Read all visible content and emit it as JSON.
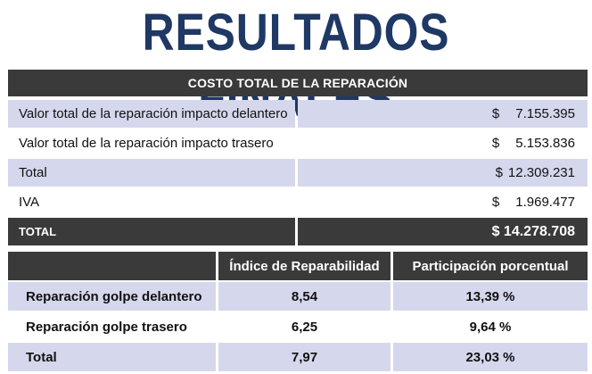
{
  "title": "RESULTADOS FINALES",
  "cost_table": {
    "header": "COSTO TOTAL DE LA REPARACIÓN",
    "currency": "$",
    "rows": [
      {
        "label": "Valor total de la reparación impacto delantero",
        "value": "7.155.395"
      },
      {
        "label": "Valor total de la reparación impacto trasero",
        "value": "5.153.836"
      },
      {
        "label": "Total",
        "value": "12.309.231"
      },
      {
        "label": "IVA",
        "value": "1.969.477"
      }
    ],
    "total": {
      "label": "TOTAL",
      "value": "$ 14.278.708"
    }
  },
  "index_table": {
    "headers": [
      "",
      "Índice de Reparabilidad",
      "Participación porcentual"
    ],
    "rows": [
      {
        "label": "Reparación golpe delantero",
        "index": "8,54",
        "share": "13,39 %"
      },
      {
        "label": "Reparación golpe trasero",
        "index": "6,25",
        "share": "9,64 %"
      },
      {
        "label": "Total",
        "index": "7,97",
        "share": "23,03 %"
      }
    ]
  },
  "colors": {
    "title": "#1f3864",
    "dark_band": "#3a3a3a",
    "lavender_row": "#d5d8ec"
  }
}
